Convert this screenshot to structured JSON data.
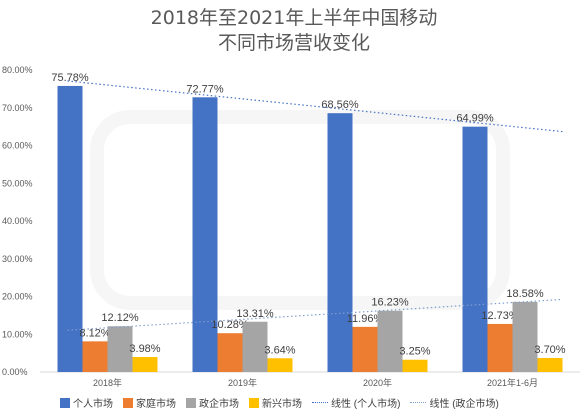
{
  "title_line1": "2018年至2021年上半年中国移动",
  "title_line2": "不同市场营收变化",
  "chart_data": {
    "type": "bar",
    "categories": [
      "2018年",
      "2019年",
      "2020年",
      "2021年1-6月"
    ],
    "ylim": [
      0,
      80
    ],
    "yticks": [
      "0.00%",
      "10.00%",
      "20.00%",
      "30.00%",
      "40.00%",
      "50.00%",
      "60.00%",
      "70.00%",
      "80.00%"
    ],
    "series": [
      {
        "name": "个人市场",
        "color": "#4472c4",
        "values": [
          75.78,
          72.77,
          68.56,
          64.99
        ],
        "labels": [
          "75.78%",
          "72.77%",
          "68.56%",
          "64.99%"
        ]
      },
      {
        "name": "家庭市场",
        "color": "#ed7d31",
        "values": [
          8.12,
          10.28,
          11.96,
          12.73
        ],
        "labels": [
          "8.12%",
          "10.28%",
          "11.96%",
          "12.73%"
        ]
      },
      {
        "name": "政企市场",
        "color": "#a5a5a5",
        "values": [
          12.12,
          13.31,
          16.23,
          18.58
        ],
        "labels": [
          "12.12%",
          "13.31%",
          "16.23%",
          "18.58%"
        ]
      },
      {
        "name": "新兴市场",
        "color": "#ffc000",
        "values": [
          3.98,
          3.64,
          3.25,
          3.7
        ],
        "labels": [
          "3.98%",
          "3.64%",
          "3.25%",
          "3.70%"
        ]
      }
    ],
    "trendlines": [
      {
        "name": "线性 (个人市场)",
        "color": "#4472c4",
        "series_index": 0
      },
      {
        "name": "线性 (政企市场)",
        "color": "#7f9fcf",
        "series_index": 2
      }
    ],
    "legend_position": "bottom"
  }
}
